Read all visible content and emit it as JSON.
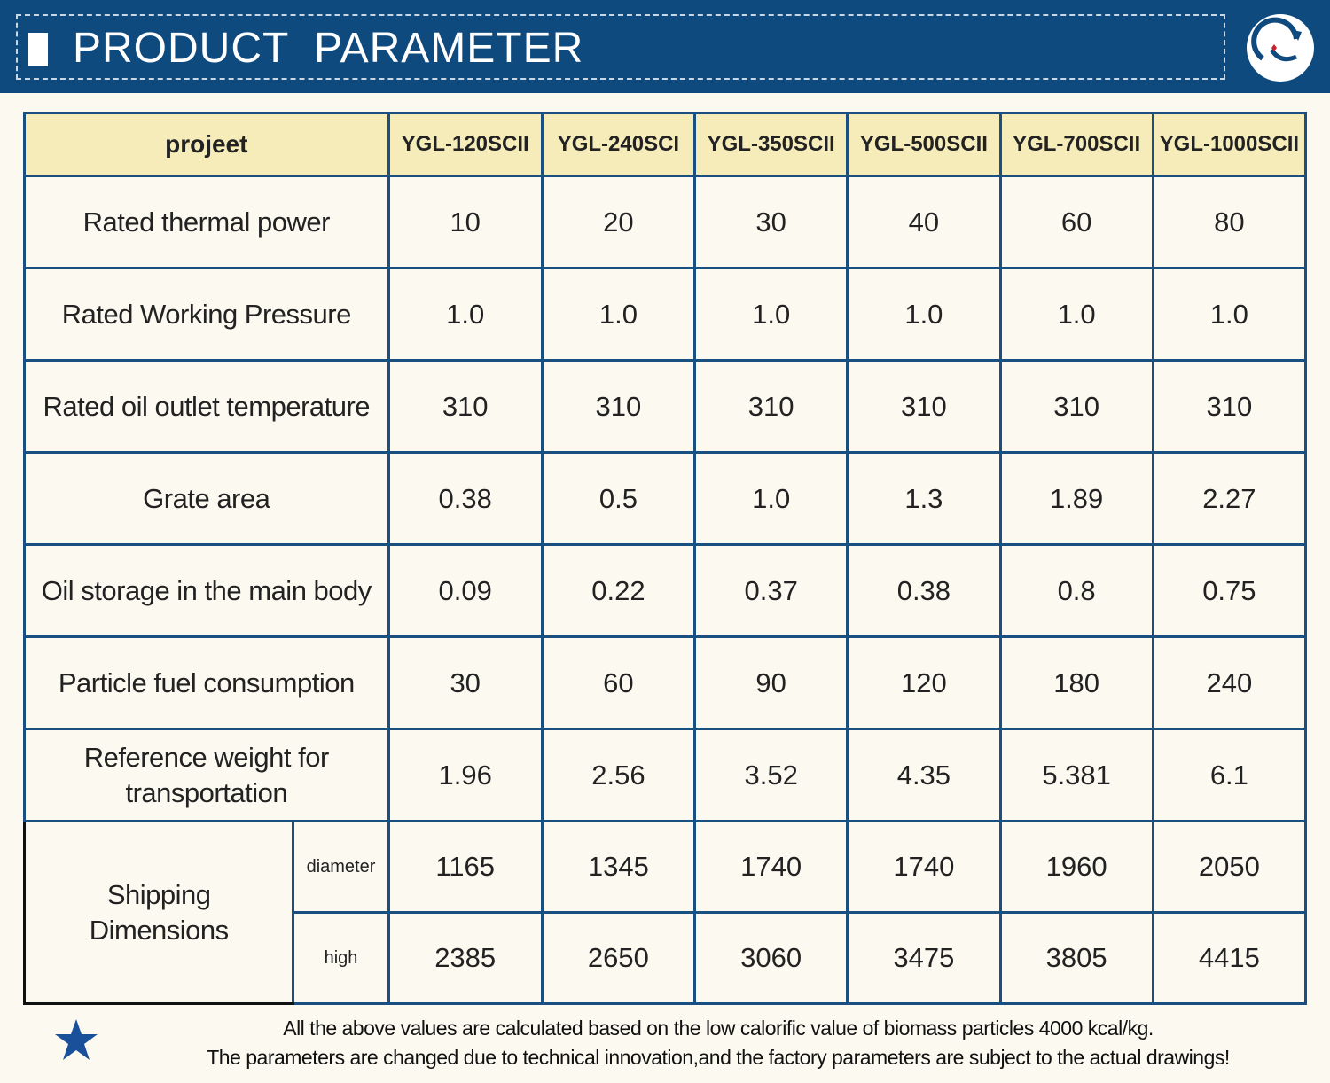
{
  "header": {
    "title": "PRODUCT  PARAMETER",
    "accent_color": "#0e4a7e"
  },
  "table": {
    "corner_label": "projeet",
    "models": [
      "YGL-120SCII",
      "YGL-240SCI",
      "YGL-350SCII",
      "YGL-500SCII",
      "YGL-700SCII",
      "YGL-1000SCII"
    ],
    "rows": [
      {
        "label": "Rated thermal power",
        "values": [
          "10",
          "20",
          "30",
          "40",
          "60",
          "80"
        ]
      },
      {
        "label": "Rated Working Pressure",
        "values": [
          "1.0",
          "1.0",
          "1.0",
          "1.0",
          "1.0",
          "1.0"
        ]
      },
      {
        "label": "Rated oil outlet temperature",
        "values": [
          "310",
          "310",
          "310",
          "310",
          "310",
          "310"
        ]
      },
      {
        "label": "Grate area",
        "values": [
          "0.38",
          "0.5",
          "1.0",
          "1.3",
          "1.89",
          "2.27"
        ]
      },
      {
        "label": "Oil storage in the main body",
        "values": [
          "0.09",
          "0.22",
          "0.37",
          "0.38",
          "0.8",
          "0.75"
        ]
      },
      {
        "label": "Particle fuel consumption",
        "values": [
          "30",
          "60",
          "90",
          "120",
          "180",
          "240"
        ]
      },
      {
        "label_line1": "Reference weight for",
        "label_line2": "transportation",
        "values": [
          "1.96",
          "2.56",
          "3.52",
          "4.35",
          "5.381",
          "6.1"
        ]
      }
    ],
    "shipping": {
      "label_line1": "Shipping",
      "label_line2": "Dimensions",
      "diameter": {
        "label": "diameter",
        "values": [
          "1165",
          "1345",
          "1740",
          "1740",
          "1960",
          "2050"
        ]
      },
      "high": {
        "label": "high",
        "values": [
          "2385",
          "2650",
          "3060",
          "3475",
          "3805",
          "4415"
        ]
      }
    }
  },
  "note": {
    "icon": "star-icon",
    "line1": "All the above values are calculated based on the low calorific value of biomass particles 4000 kcal/kg.",
    "line2": "The parameters are changed due to technical innovation,and the factory parameters are subject to the actual drawings!"
  }
}
